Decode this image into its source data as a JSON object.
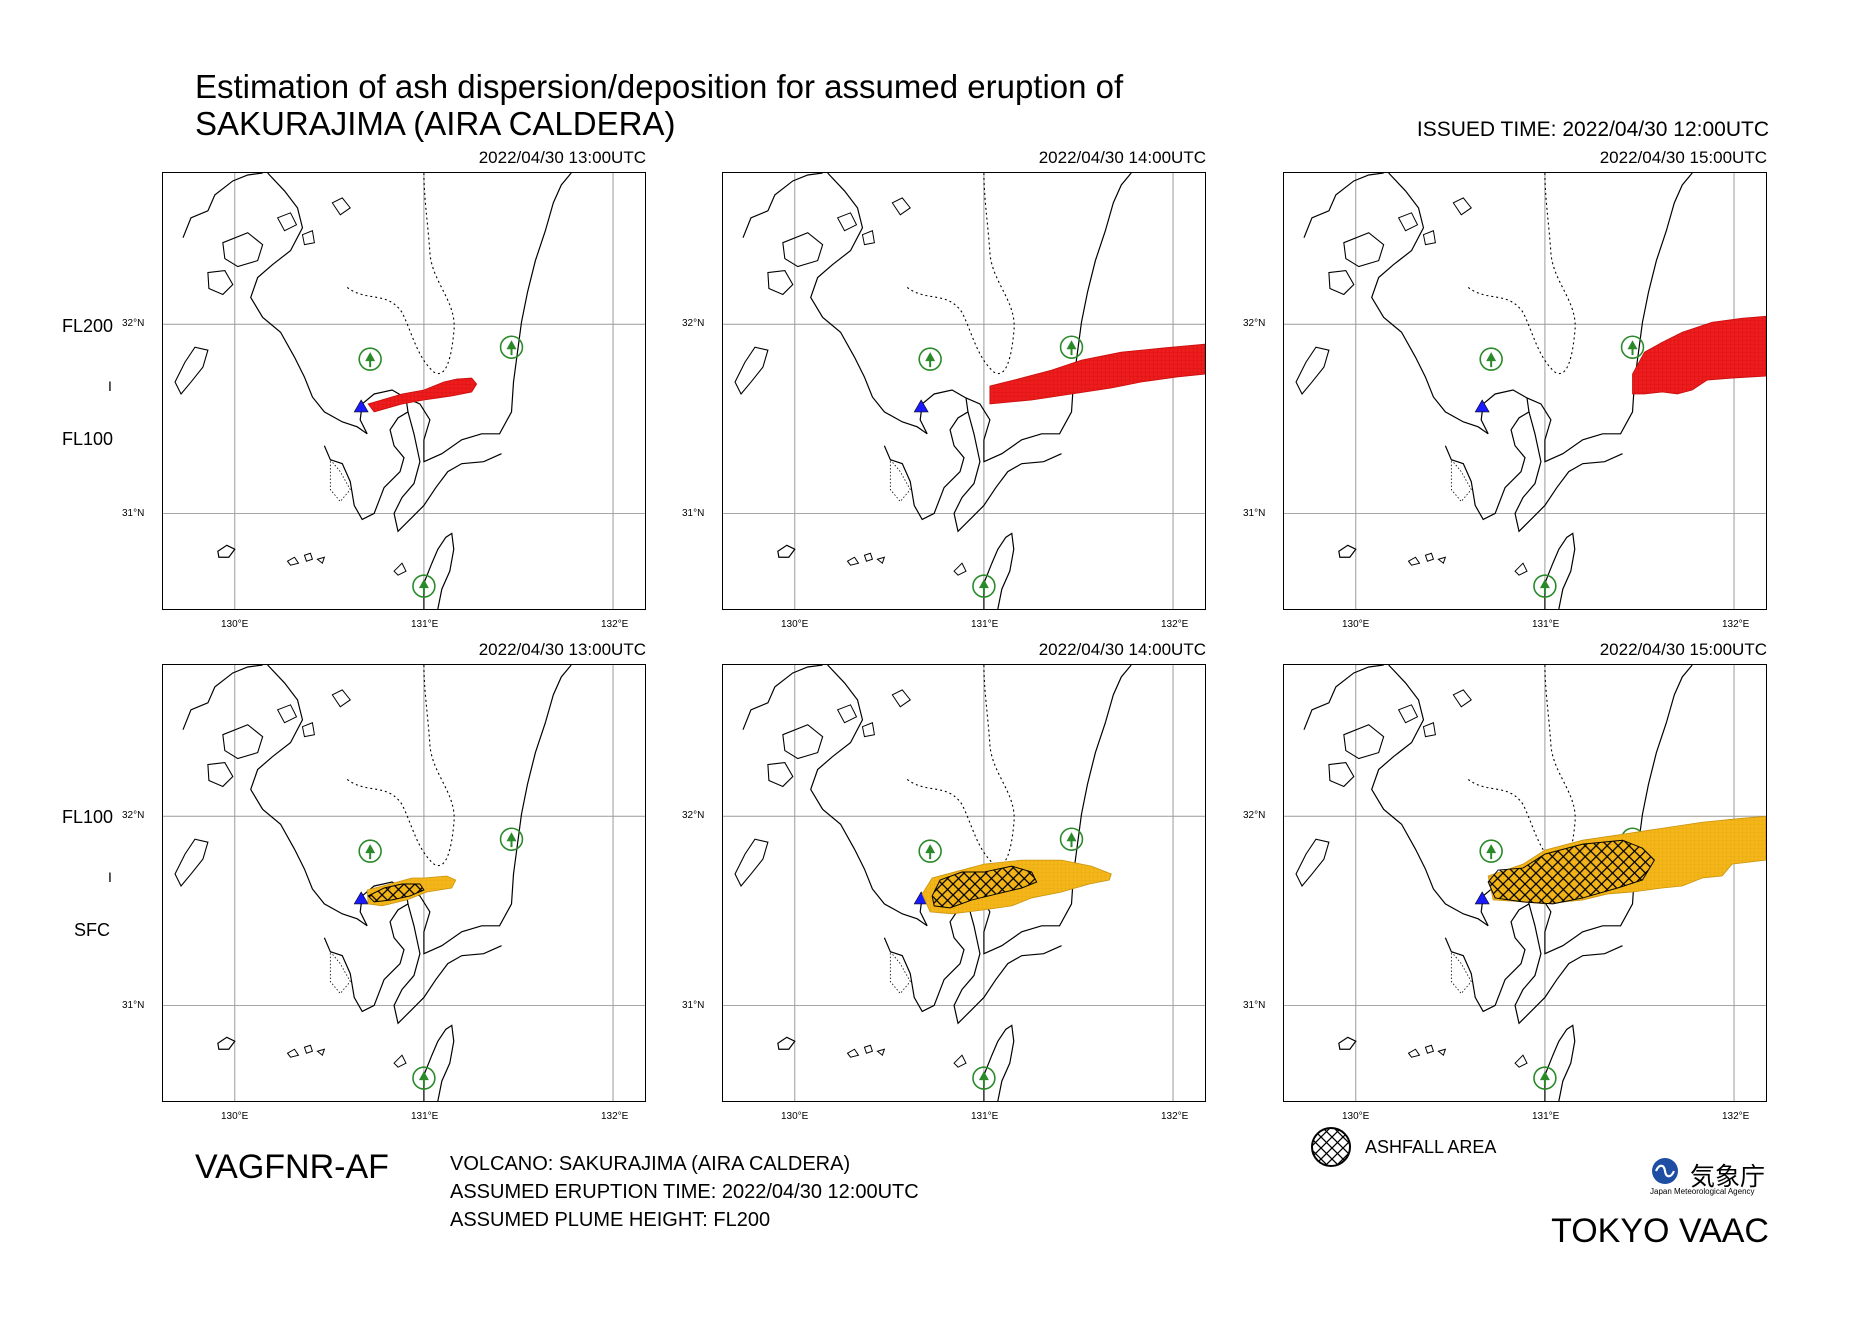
{
  "title": {
    "line1": "Estimation of ash dispersion/deposition for assumed eruption of",
    "line2": "SAKURAJIMA (AIRA CALDERA)"
  },
  "issued_time": "ISSUED TIME: 2022/04/30 12:00UTC",
  "rows": [
    {
      "upper": "FL200",
      "sep": "I",
      "lower": "FL100"
    },
    {
      "upper": "FL100",
      "sep": "I",
      "lower": "SFC"
    }
  ],
  "panels": [
    {
      "time": "2022/04/30 13:00UTC",
      "layer": "FL200-FL100",
      "plume": "ash cloud"
    },
    {
      "time": "2022/04/30 14:00UTC",
      "layer": "FL200-FL100",
      "plume": "ash cloud"
    },
    {
      "time": "2022/04/30 15:00UTC",
      "layer": "FL200-FL100",
      "plume": "ash cloud"
    },
    {
      "time": "2022/04/30 13:00UTC",
      "layer": "FL100-SFC",
      "plume": "ash cloud with ashfall"
    },
    {
      "time": "2022/04/30 14:00UTC",
      "layer": "FL100-SFC",
      "plume": "ash cloud with ashfall"
    },
    {
      "time": "2022/04/30 15:00UTC",
      "layer": "FL100-SFC",
      "plume": "ash cloud with ashfall"
    }
  ],
  "axes": {
    "lat_labels": [
      "32°N",
      "31°N"
    ],
    "lon_labels": [
      "130°E",
      "131°E",
      "132°E"
    ]
  },
  "colors": {
    "upper_ash": "#ee1c1c",
    "lower_ash": "#f5b618",
    "volcano": "#1a1aff",
    "airport": "#2a8a2a",
    "grid": "#9a9a9a"
  },
  "icons": {
    "volcano": "volcano-triangle-icon",
    "airport": "airport-symbol-icon",
    "ashfall": "ashfall-hatch-icon"
  },
  "product_code": "VAGFNR-AF",
  "info": {
    "volcano": "VOLCANO: SAKURAJIMA (AIRA CALDERA)",
    "eruption_time": "ASSUMED ERUPTION TIME: 2022/04/30 12:00UTC",
    "plume_height": "ASSUMED PLUME HEIGHT: FL200"
  },
  "legend": {
    "ashfall_label": "ASHFALL AREA"
  },
  "agency": {
    "name_jp": "気象庁",
    "name_en": "Japan Meteorological Agency"
  },
  "vaac": "TOKYO VAAC"
}
